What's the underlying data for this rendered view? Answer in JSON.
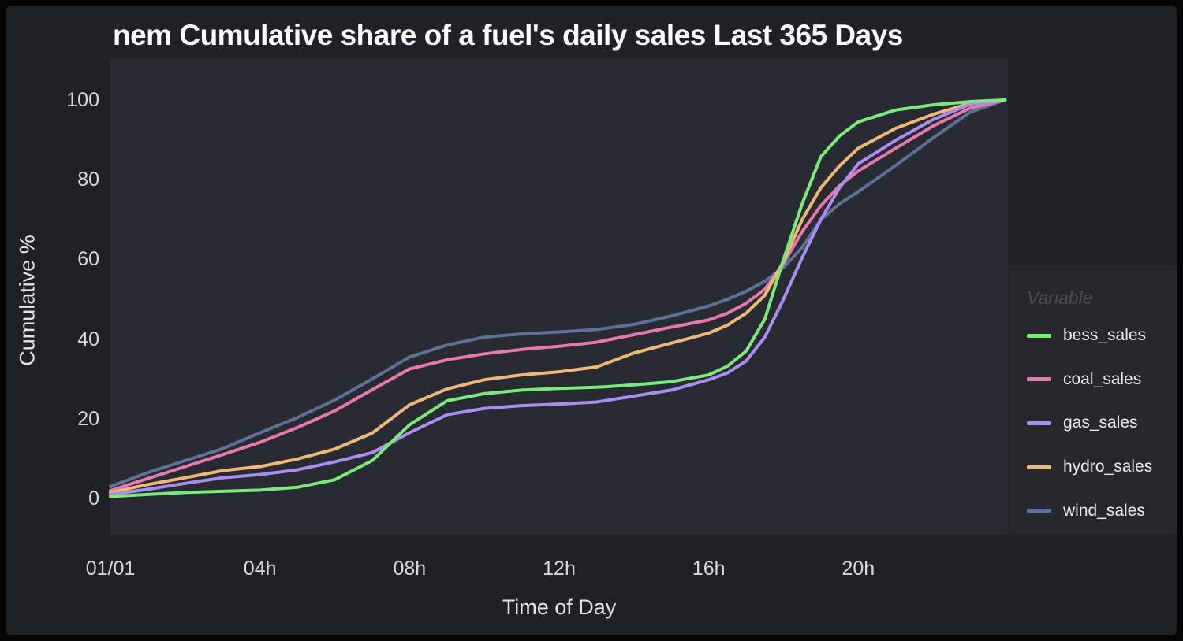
{
  "window": {
    "title": "nem Cumulative share of a fuel's daily sales Last 365 Days"
  },
  "chart_data": {
    "type": "line",
    "title": "nem Cumulative share of a fuel's daily sales Last 365 Days",
    "xlabel": "Time of Day",
    "ylabel": "Cumulative %",
    "xlim": [
      0,
      24
    ],
    "ylim": [
      0,
      100
    ],
    "grid": false,
    "legend_title": "Variable",
    "legend_position": "right",
    "x_ticks": [
      {
        "t": 0,
        "label": "01/01"
      },
      {
        "t": 4,
        "label": "04h"
      },
      {
        "t": 8,
        "label": "08h"
      },
      {
        "t": 12,
        "label": "12h"
      },
      {
        "t": 16,
        "label": "16h"
      },
      {
        "t": 20,
        "label": "20h"
      }
    ],
    "y_ticks": [
      {
        "v": 0,
        "label": "0"
      },
      {
        "v": 20,
        "label": "20"
      },
      {
        "v": 40,
        "label": "40"
      },
      {
        "v": 60,
        "label": "60"
      },
      {
        "v": 80,
        "label": "80"
      },
      {
        "v": 100,
        "label": "100"
      }
    ],
    "x_hours": [
      0,
      1,
      2,
      3,
      4,
      5,
      6,
      7,
      8,
      9,
      10,
      11,
      12,
      13,
      14,
      15,
      16,
      16.5,
      17,
      17.5,
      18,
      18.5,
      19,
      19.5,
      20,
      21,
      22,
      23,
      23.92
    ],
    "series": [
      {
        "name": "bess_sales",
        "color": "#7BE97D",
        "values": [
          0.5,
          1,
          1.5,
          1.8,
          2.1,
          2.8,
          4.7,
          9.5,
          18.5,
          24.5,
          26.3,
          27.2,
          27.6,
          27.9,
          28.5,
          29.3,
          31,
          33.2,
          37,
          45,
          60,
          74,
          85.8,
          91,
          94.5,
          97.5,
          98.8,
          99.6,
          100
        ]
      },
      {
        "name": "coal_sales",
        "color": "#E878AE",
        "values": [
          2,
          5,
          8,
          11,
          14.1,
          17.8,
          22,
          27.3,
          32.5,
          34.8,
          36.3,
          37.4,
          38.2,
          39.2,
          41.1,
          43,
          44.8,
          46.5,
          49,
          52.5,
          59,
          67,
          73.5,
          78.5,
          82.2,
          87.9,
          93.5,
          98,
          100
        ]
      },
      {
        "name": "gas_sales",
        "color": "#AA8DF0",
        "values": [
          1,
          2.3,
          3.8,
          5.2,
          6,
          7.2,
          9.2,
          11.5,
          16.5,
          21,
          22.6,
          23.3,
          23.7,
          24.2,
          25.7,
          27.2,
          29.8,
          31.5,
          34.5,
          40.5,
          50,
          60.5,
          70,
          78,
          84,
          89.9,
          95.1,
          99,
          100
        ]
      },
      {
        "name": "hydro_sales",
        "color": "#EFB877",
        "values": [
          1.5,
          3.5,
          5.2,
          7,
          8,
          9.9,
          12.4,
          16.4,
          23.5,
          27.5,
          29.8,
          31,
          31.8,
          33,
          36.5,
          39,
          41.5,
          43.5,
          46.5,
          51,
          59.5,
          70,
          78,
          83.5,
          87.9,
          92.9,
          96.4,
          99.2,
          100
        ]
      },
      {
        "name": "wind_sales",
        "color": "#5E7199",
        "values": [
          3,
          6.5,
          9.5,
          12.5,
          16.5,
          20.3,
          24.7,
          30,
          35.5,
          38.5,
          40.5,
          41.3,
          41.8,
          42.4,
          43.7,
          45.8,
          48.3,
          50,
          52,
          54.5,
          58,
          63,
          70,
          74,
          77,
          83.6,
          90.5,
          97,
          100
        ]
      }
    ],
    "draw_order": [
      "wind_sales",
      "coal_sales",
      "hydro_sales",
      "gas_sales",
      "bess_sales"
    ],
    "line_width": 4
  },
  "colors": {
    "page_border": "#050506",
    "figure_bg": "#1e2126",
    "plot_bg": "#282b32",
    "legend_bg": "#26282e",
    "title_text": "#ffffff",
    "tick_text": "#d8d9dc",
    "legend_title_text": "#4b4e55",
    "legend_label_text": "#e9eaeb"
  }
}
